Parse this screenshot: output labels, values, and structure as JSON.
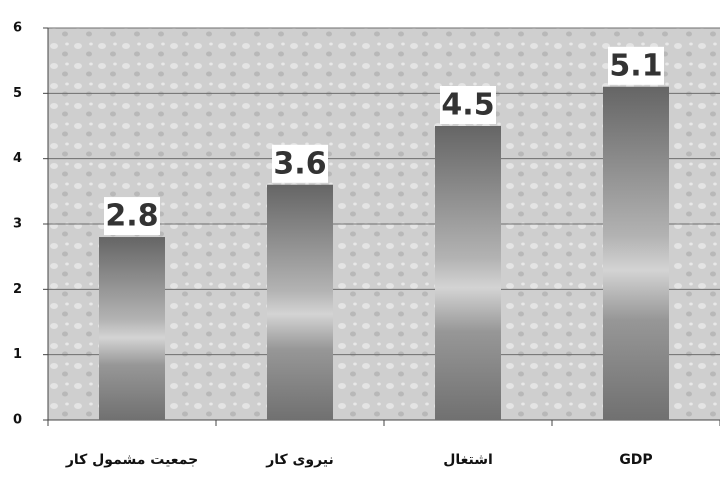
{
  "chart_data": {
    "type": "bar",
    "categories": [
      "جمعیت مشمول کار",
      "نیروی کار",
      "اشتغال",
      "GDP"
    ],
    "values": [
      2.8,
      3.6,
      4.5,
      5.1
    ],
    "color": "#8a8a8a",
    "ylim": [
      0,
      6
    ],
    "yticks": [
      0,
      1,
      2,
      3,
      4,
      5,
      6
    ],
    "grid": true
  }
}
